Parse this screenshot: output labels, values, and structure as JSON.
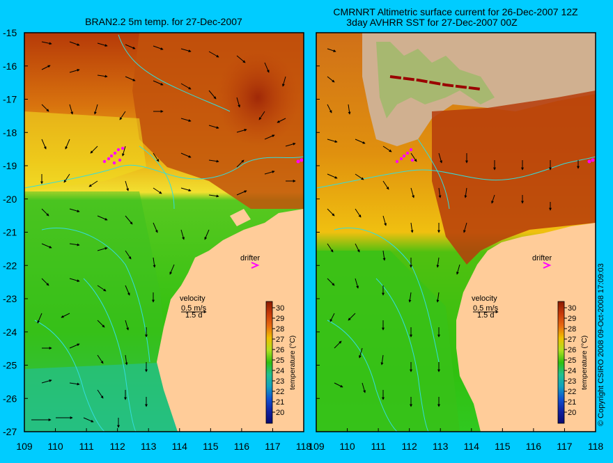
{
  "left_panel": {
    "title": "BRAN2.2 5m temp. for 27-Dec-2007",
    "velocity_label": "velocity",
    "velocity_scale": "0.5 m/s",
    "velocity_time": "1.5 d",
    "drifter_label": "drifter",
    "colorbar_title": "temperature (°C)"
  },
  "right_panel": {
    "title_line1": "CMRNRT Altimetric surface current for 26-Dec-2007 12Z",
    "title_line2": "3day AVHRR SST for 27-Dec-2007 00Z",
    "velocity_label": "velocity",
    "velocity_scale": "0.5 m/s",
    "velocity_time": "1.5 d",
    "drifter_label": "drifter",
    "colorbar_title": "temperature (°C)"
  },
  "y_ticks": [
    "-15",
    "-16",
    "-17",
    "-18",
    "-19",
    "-20",
    "-21",
    "-22",
    "-23",
    "-24",
    "-25",
    "-26",
    "-27"
  ],
  "left_x_ticks": [
    "109",
    "110",
    "111",
    "112",
    "113",
    "114",
    "115",
    "116",
    "117",
    "118"
  ],
  "right_x_ticks": [
    "109",
    "110",
    "111",
    "112",
    "113",
    "114",
    "115",
    "116",
    "117",
    "118"
  ],
  "colorbar_ticks": [
    "30",
    "29",
    "28",
    "27",
    "26",
    "25",
    "24",
    "23",
    "22",
    "21",
    "20"
  ],
  "copyright": "© Copyright CSIRO 2008   09-Oct-2008 17:09:03",
  "colors": {
    "background": "#00ccff",
    "land": "#ffcc99",
    "contour": "#33dddd",
    "drifter": "#ff00ff",
    "warm": "#c0460a",
    "mid": "#f0c000",
    "cool": "#30c020"
  }
}
